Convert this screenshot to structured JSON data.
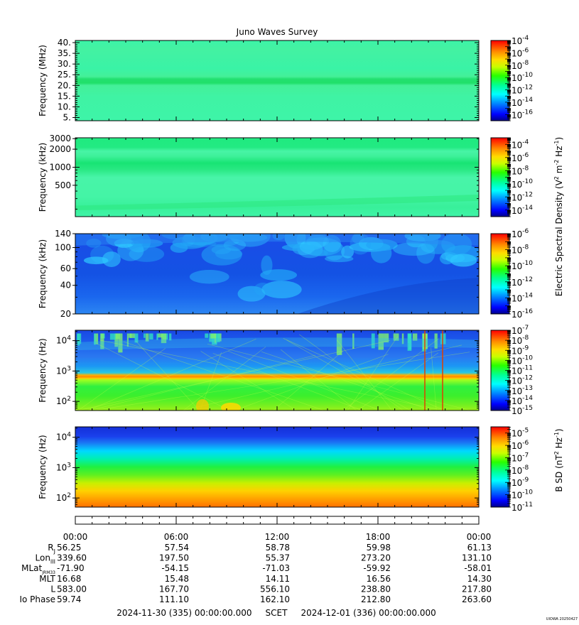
{
  "title": "Juno Waves Survey",
  "chart_data": [
    {
      "type": "heatmap",
      "ylabel": "Frequency (MHz)",
      "yscale": "linear",
      "ylim": [
        3.5,
        41
      ],
      "yticks": [
        {
          "v": 5,
          "label": "5."
        },
        {
          "v": 10,
          "label": "10."
        },
        {
          "v": 15,
          "label": "15."
        },
        {
          "v": 20,
          "label": "20."
        },
        {
          "v": 25,
          "label": "25."
        },
        {
          "v": 30,
          "label": "30."
        },
        {
          "v": 35,
          "label": "35."
        },
        {
          "v": 40,
          "label": "40."
        }
      ],
      "colorbar": {
        "exp_min": -17,
        "exp_max": -4,
        "labels": [
          -4,
          -6,
          -8,
          -10,
          -12,
          -14,
          -16
        ]
      }
    },
    {
      "type": "heatmap",
      "ylabel": "Frequency (kHz)",
      "yscale": "log",
      "ylim": [
        150,
        3100
      ],
      "yticks": [
        {
          "v": 500,
          "label": "500"
        },
        {
          "v": 1000,
          "label": "1000"
        },
        {
          "v": 2000,
          "label": "2000"
        },
        {
          "v": 3000,
          "label": "3000"
        }
      ],
      "colorbar": {
        "exp_min": -15,
        "exp_max": -3,
        "labels": [
          -4,
          -6,
          -8,
          -10,
          -12,
          -14
        ]
      }
    },
    {
      "type": "heatmap",
      "ylabel": "Frequency (kHz)",
      "yscale": "log",
      "ylim": [
        20,
        140
      ],
      "yticks": [
        {
          "v": 20,
          "label": "20"
        },
        {
          "v": 40,
          "label": "40"
        },
        {
          "v": 60,
          "label": "60"
        },
        {
          "v": 100,
          "label": "100"
        },
        {
          "v": 140,
          "label": "140"
        }
      ],
      "colorbar": {
        "exp_min": -16,
        "exp_max": -6,
        "labels": [
          -6,
          -8,
          -10,
          -12,
          -14,
          -16
        ]
      }
    },
    {
      "type": "heatmap",
      "ylabel": "Frequency (Hz)",
      "yscale": "log",
      "ylim": [
        50,
        22000
      ],
      "yticks": [
        {
          "v": 100,
          "label": "10",
          "sup": "2"
        },
        {
          "v": 1000,
          "label": "10",
          "sup": "3"
        },
        {
          "v": 10000,
          "label": "10",
          "sup": "4"
        }
      ],
      "colorbar": {
        "exp_min": -15,
        "exp_max": -7,
        "labels": [
          -7,
          -8,
          -9,
          -10,
          -11,
          -12,
          -13,
          -14,
          -15
        ]
      }
    },
    {
      "type": "heatmap",
      "ylabel": "Frequency (Hz)",
      "yscale": "log",
      "ylim": [
        50,
        22000
      ],
      "yticks": [
        {
          "v": 100,
          "label": "10",
          "sup": "2"
        },
        {
          "v": 1000,
          "label": "10",
          "sup": "3"
        },
        {
          "v": 10000,
          "label": "10",
          "sup": "4"
        }
      ],
      "colorbar": {
        "exp_min": -11,
        "exp_max": -4.5,
        "labels": [
          -5,
          -6,
          -7,
          -8,
          -9,
          -10,
          -11
        ]
      }
    }
  ],
  "colorbar_titles": {
    "electric": {
      "pre": "Electric Spectral Density (V",
      "sup1": "2",
      "mid": " m",
      "sup2": "-2",
      "mid2": " Hz",
      "sup3": "-1",
      "post": ")"
    },
    "magnetic": {
      "pre": "B SD (nT",
      "sup1": "2",
      "mid": " Hz",
      "sup2": "-1",
      "post": ")"
    }
  },
  "time_axis": {
    "ticks": [
      "00:00",
      "06:00",
      "12:00",
      "18:00",
      "00:00"
    ],
    "rows": [
      {
        "label": "R",
        "sub": "J",
        "values": [
          "56.25",
          "57.54",
          "58.78",
          "59.98",
          "61.13"
        ]
      },
      {
        "label": "Lon",
        "sub": "III",
        "values": [
          "339.60",
          "197.50",
          "55.37",
          "273.20",
          "131.10"
        ]
      },
      {
        "label": "MLat",
        "sub": "JRM33",
        "values": [
          "-71.90",
          "-54.15",
          "-71.03",
          "-59.92",
          "-58.01"
        ]
      },
      {
        "label": "MLT",
        "sub": "",
        "values": [
          "16.68",
          "15.48",
          "14.11",
          "16.56",
          "14.30"
        ]
      },
      {
        "label": "L",
        "sub": "",
        "values": [
          "583.00",
          "167.70",
          "556.10",
          "238.80",
          "217.80"
        ]
      },
      {
        "label": "Io Phase",
        "sub": "",
        "values": [
          "59.74",
          "111.10",
          "162.10",
          "212.80",
          "263.60"
        ]
      }
    ],
    "range_text": "2024-11-30 (335) 00:00:00.000     SCET     2024-12-01 (336) 00:00:00.000"
  },
  "credit": "UIOWA 20250427",
  "colors": {
    "frame": "#000000",
    "background": "#ffffff"
  }
}
